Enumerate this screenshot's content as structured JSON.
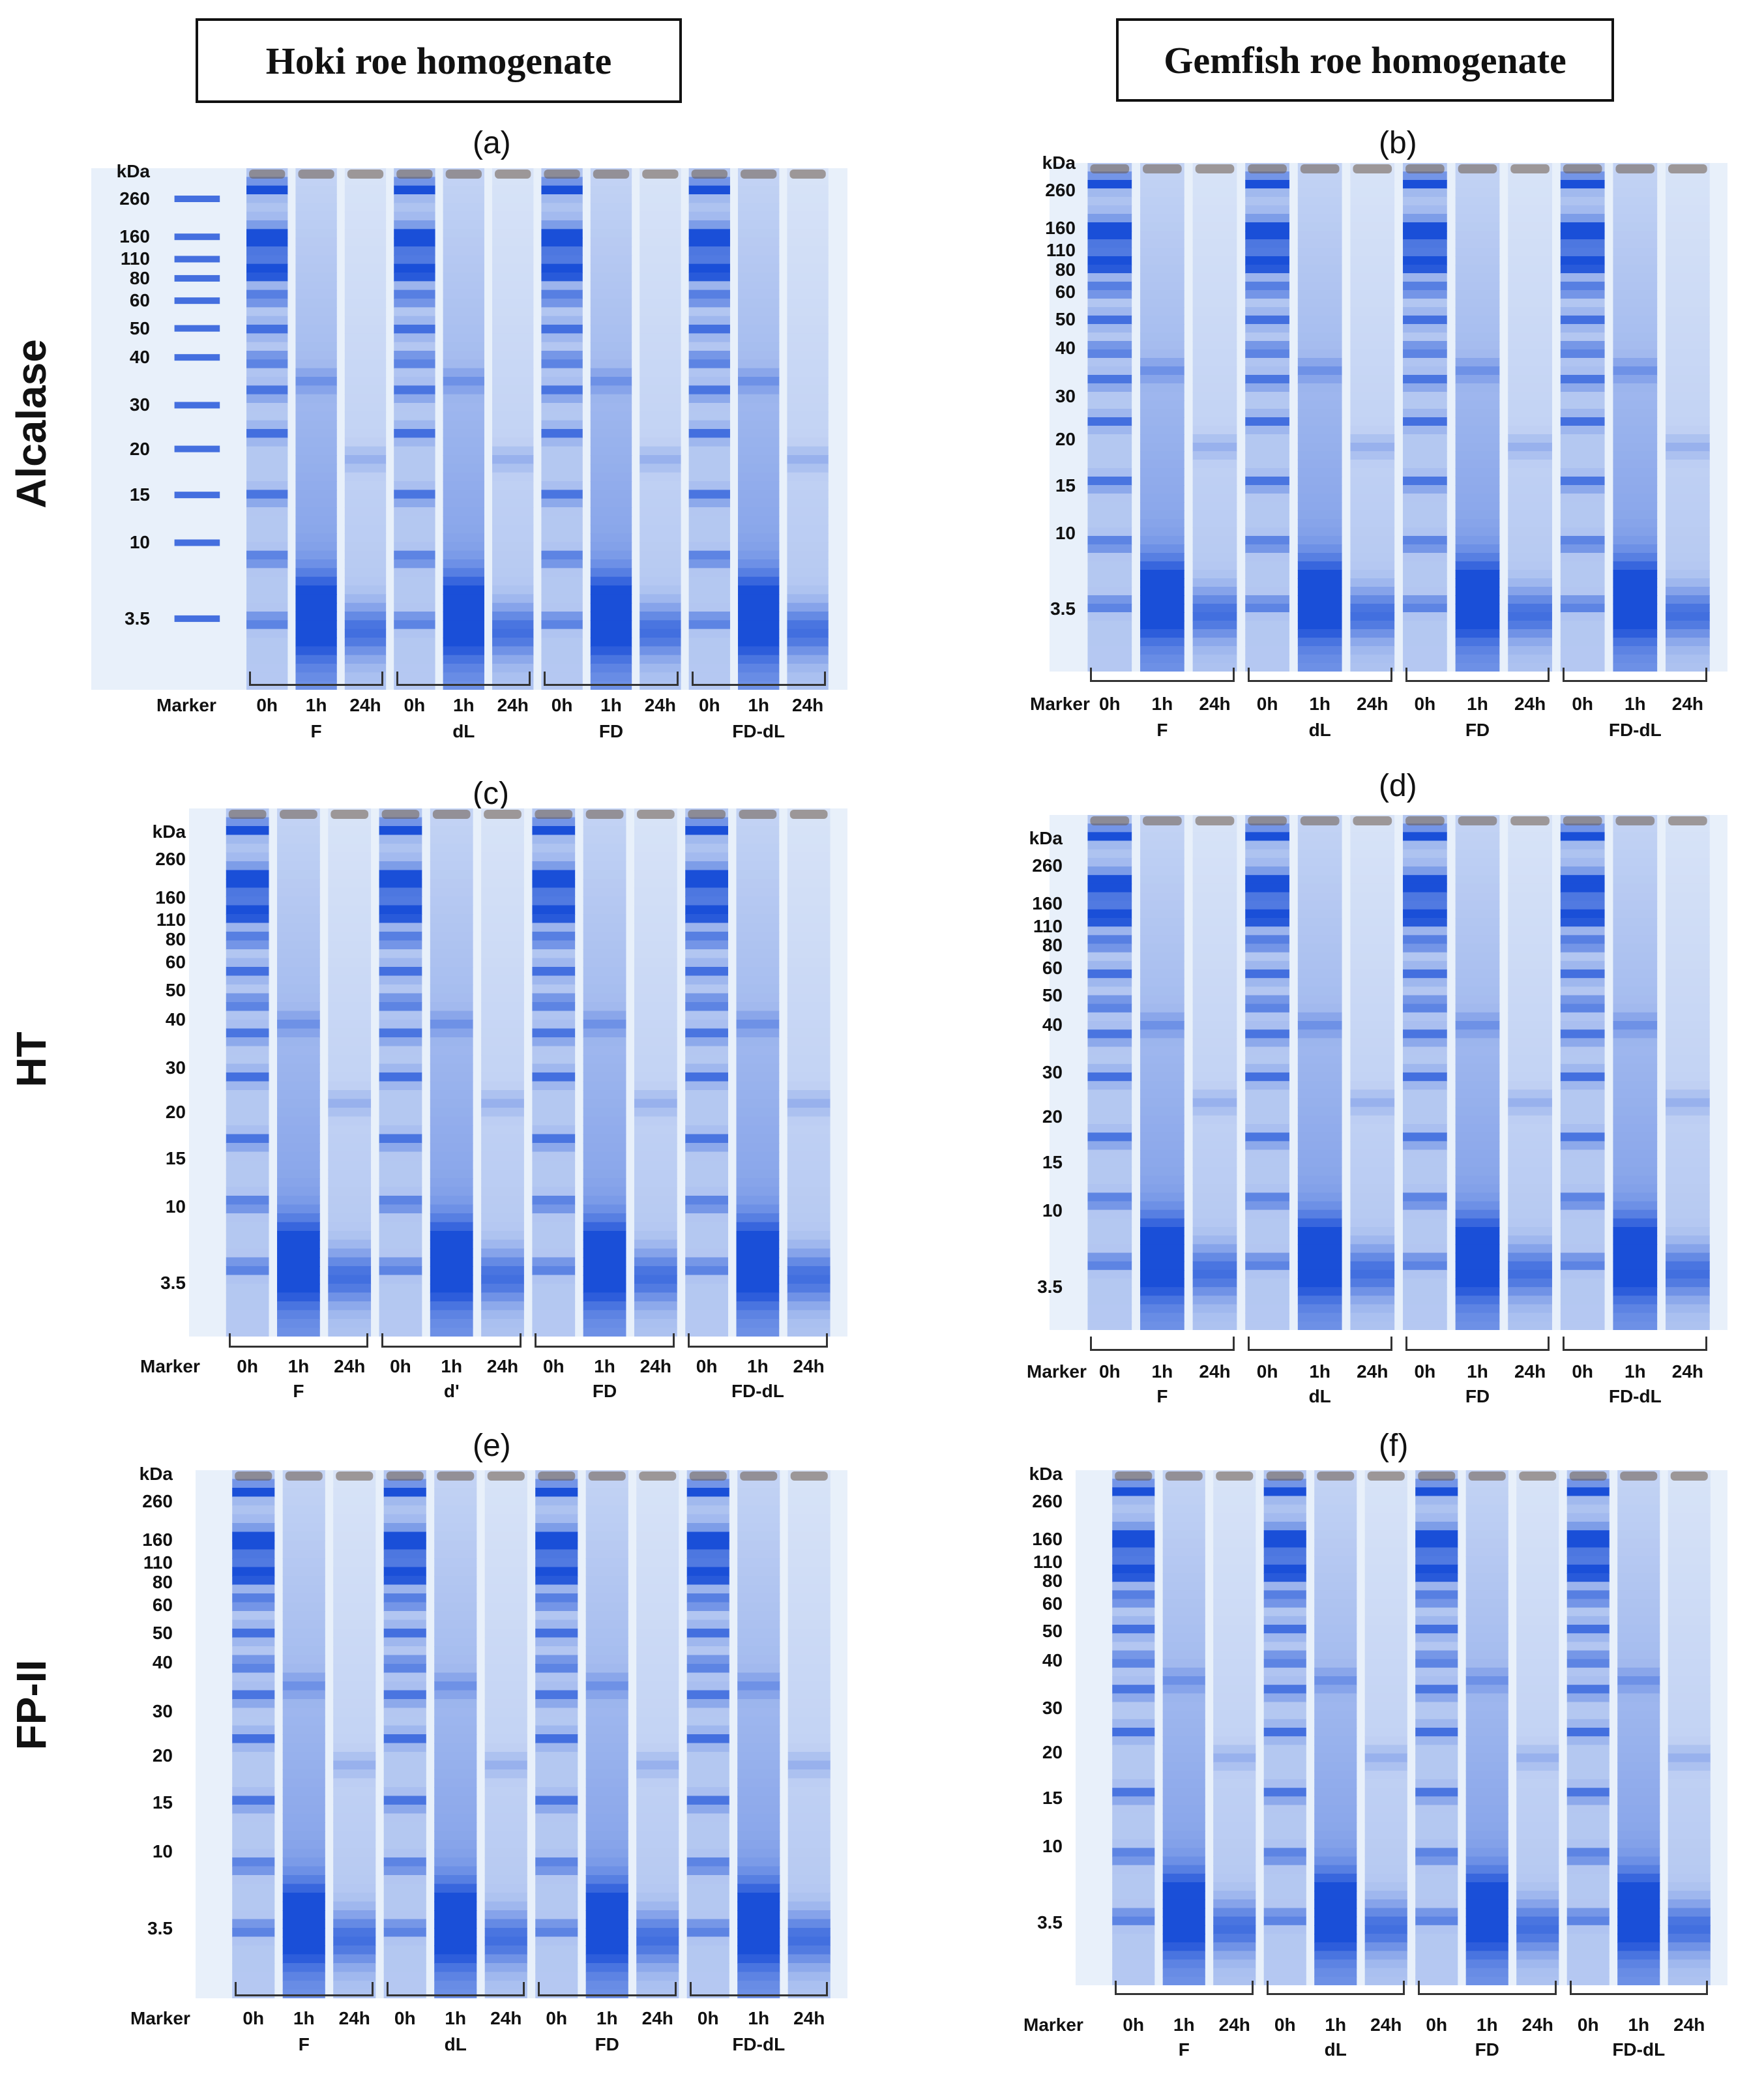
{
  "columns": [
    "Hoki roe homogenate",
    "Gemfish roe homogenate"
  ],
  "rows": [
    "Alcalase",
    "HT",
    "FP-II"
  ],
  "colors": {
    "stain": "#1a4fd8",
    "stain_light": "#8fb8ee",
    "gel_bg": "#e8f0fa",
    "paper": "#f7f5f0"
  },
  "panels": [
    {
      "label": "(a)",
      "has_marker_lane": true,
      "group_labels": [
        "F",
        "dL",
        "FD",
        "FD-dL"
      ]
    },
    {
      "label": "(b)",
      "has_marker_lane": false,
      "group_labels": [
        "F",
        "dL",
        "FD",
        "FD-dL"
      ]
    },
    {
      "label": "(c)",
      "has_marker_lane": false,
      "group_labels": [
        "F",
        "d'",
        "FD",
        "FD-dL"
      ]
    },
    {
      "label": "(d)",
      "has_marker_lane": false,
      "group_labels": [
        "F",
        "dL",
        "FD",
        "FD-dL"
      ]
    },
    {
      "label": "(e)",
      "has_marker_lane": false,
      "group_labels": [
        "F",
        "dL",
        "FD",
        "FD-dL"
      ]
    },
    {
      "label": "(f)",
      "has_marker_lane": false,
      "group_labels": [
        "F",
        "dL",
        "FD",
        "FD-dL"
      ]
    }
  ],
  "kda_label": "kDa",
  "mw_ticks": [
    "260",
    "160",
    "110",
    "80",
    "60",
    "50",
    "40",
    "30",
    "20",
    "15",
    "10",
    "3.5"
  ],
  "marker_label": "Marker",
  "lane_labels": [
    "0h",
    "1h",
    "24h"
  ]
}
